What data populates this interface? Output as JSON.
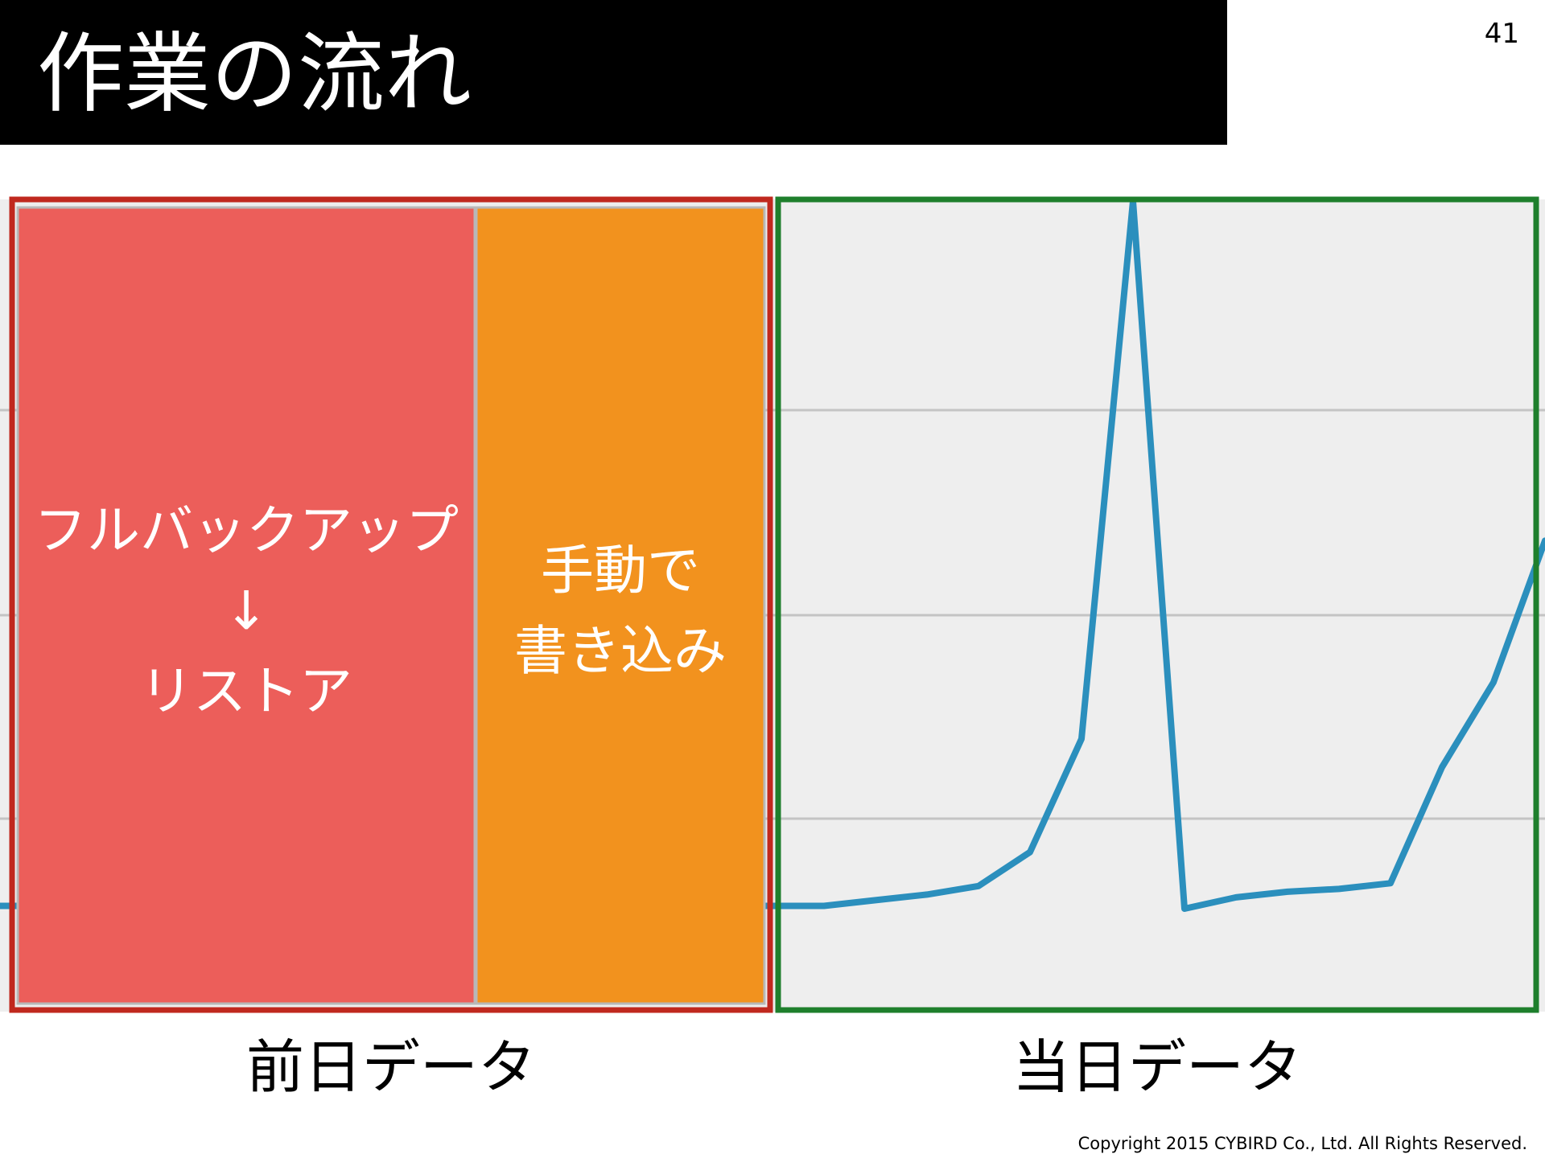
{
  "slide": {
    "title": "作業の流れ",
    "page_number": "41",
    "footer": "Copyright 2015 CYBIRD Co., Ltd.  All Rights Reserved."
  },
  "sections": {
    "previous_day": {
      "label": "前日データ",
      "border_color": "#c0281e",
      "full_backup_block": {
        "lines": [
          "フルバックアップ",
          "↓",
          "リストア"
        ],
        "color": "#ec5e5a"
      },
      "manual_write_block": {
        "lines": [
          "手動で",
          "書き込み"
        ],
        "color": "#f2921e"
      }
    },
    "current_day": {
      "label": "当日データ",
      "border_color": "#1e7f2c"
    }
  },
  "colors": {
    "chart_background": "#eeeeee",
    "gridline": "#c4c4c4",
    "line": "#2b8fbd"
  },
  "chart_data": {
    "type": "line",
    "title": "",
    "xlabel": "",
    "ylabel": "",
    "grid": true,
    "legend": "none",
    "x": [
      0,
      1,
      2,
      3,
      4,
      5,
      6,
      7,
      8,
      9,
      10,
      11,
      12,
      13,
      14,
      15,
      16,
      17,
      18,
      19,
      20,
      21,
      22,
      23,
      24,
      25,
      26,
      27,
      28,
      29,
      30
    ],
    "series": [
      {
        "values": [
          0.1,
          0.1,
          0.1,
          0.1,
          0.1,
          0.1,
          0.1,
          0.1,
          0.1,
          0.1,
          0.1,
          0.1,
          0.1,
          0.1,
          0.1,
          0.1,
          0.1,
          0.3,
          0.5,
          0.8,
          2.0,
          6.0,
          25.0,
          0.0,
          0.4,
          0.6,
          0.7,
          0.9,
          5.0,
          8.0,
          13.0
        ]
      }
    ],
    "ylim": [
      0,
      25
    ]
  }
}
